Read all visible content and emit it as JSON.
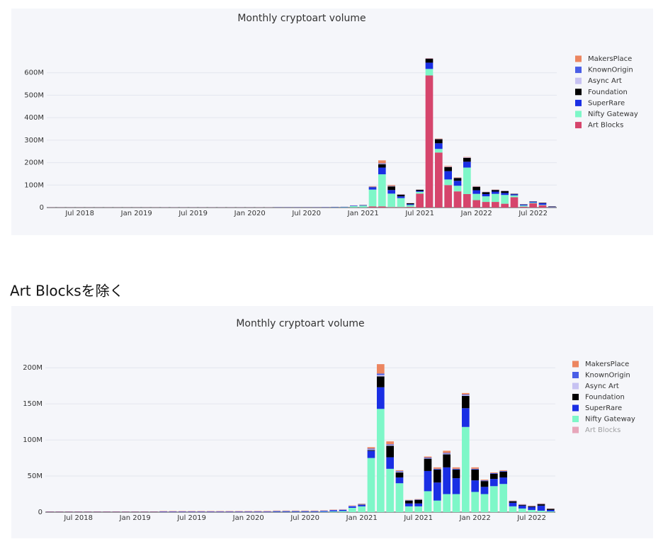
{
  "heading": "Art Blocksを除く",
  "chart_data": [
    {
      "type": "stacked_bar",
      "title": "Monthly cryptoart volume",
      "x": [
        "2018-04",
        "2018-05",
        "2018-06",
        "2018-07",
        "2018-08",
        "2018-09",
        "2018-10",
        "2018-11",
        "2018-12",
        "2019-01",
        "2019-02",
        "2019-03",
        "2019-04",
        "2019-05",
        "2019-06",
        "2019-07",
        "2019-08",
        "2019-09",
        "2019-10",
        "2019-11",
        "2019-12",
        "2020-01",
        "2020-02",
        "2020-03",
        "2020-04",
        "2020-05",
        "2020-06",
        "2020-07",
        "2020-08",
        "2020-09",
        "2020-10",
        "2020-11",
        "2020-12",
        "2021-01",
        "2021-02",
        "2021-03",
        "2021-04",
        "2021-05",
        "2021-06",
        "2021-07",
        "2021-08",
        "2021-09",
        "2021-10",
        "2021-11",
        "2021-12",
        "2022-01",
        "2022-02",
        "2022-03",
        "2022-04",
        "2022-05",
        "2022-06",
        "2022-07",
        "2022-08",
        "2022-09"
      ],
      "xlim": [
        "2018-04",
        "2022-09"
      ],
      "xticks": [
        {
          "value": "2018-07",
          "label": "Jul 2018"
        },
        {
          "value": "2019-01",
          "label": "Jan 2019"
        },
        {
          "value": "2019-07",
          "label": "Jul 2019"
        },
        {
          "value": "2020-01",
          "label": "Jan 2020"
        },
        {
          "value": "2020-07",
          "label": "Jul 2020"
        },
        {
          "value": "2021-01",
          "label": "Jan 2021"
        },
        {
          "value": "2021-07",
          "label": "Jul 2021"
        },
        {
          "value": "2022-01",
          "label": "Jan 2022"
        },
        {
          "value": "2022-07",
          "label": "Jul 2022"
        }
      ],
      "ylim": [
        0,
        700
      ],
      "yticks": [
        0,
        {
          "value": 100,
          "label": "100M"
        },
        {
          "value": 200,
          "label": "200M"
        },
        {
          "value": 300,
          "label": "300M"
        },
        {
          "value": 400,
          "label": "400M"
        },
        {
          "value": 500,
          "label": "500M"
        },
        {
          "value": 600,
          "label": "600M"
        }
      ],
      "grid": true,
      "legend": "right",
      "series": [
        {
          "name": "Art Blocks",
          "color": "#d6456c",
          "values": [
            0,
            0,
            0,
            0,
            0,
            0,
            0,
            0,
            0,
            0,
            0,
            0,
            0,
            0,
            0,
            0,
            0,
            0,
            0,
            0,
            0,
            0,
            0,
            0,
            0,
            0,
            0,
            0,
            0,
            0,
            0,
            0,
            0.5,
            0.5,
            5,
            5,
            2,
            2,
            3,
            62,
            588,
            245,
            100,
            72,
            60,
            33,
            25,
            25,
            17,
            46,
            4,
            19,
            10,
            1
          ]
        },
        {
          "name": "Nifty Gateway",
          "color": "#7ef7c8",
          "values": [
            0,
            0,
            0,
            0,
            0,
            0,
            0,
            0,
            0,
            0,
            0,
            0,
            0,
            0,
            0,
            0,
            0,
            0,
            0,
            0,
            0,
            0,
            0,
            0,
            0.3,
            0.3,
            0.3,
            0.3,
            0.3,
            0.5,
            1,
            1.5,
            6,
            8,
            75,
            143,
            60,
            40,
            8,
            8,
            29,
            16,
            25,
            25,
            118,
            28,
            25,
            36,
            39,
            8,
            5,
            3,
            2,
            1
          ]
        },
        {
          "name": "SuperRare",
          "color": "#1a2fe4",
          "values": [
            0.3,
            0.3,
            0.3,
            0.3,
            0.3,
            0.3,
            0.3,
            0.3,
            0.3,
            0.3,
            0.3,
            0.3,
            0.5,
            0.5,
            0.5,
            0.5,
            0.5,
            0.5,
            0.5,
            0.5,
            0.5,
            0.5,
            0.5,
            0.5,
            0.8,
            0.8,
            0.8,
            0.8,
            0.8,
            1,
            1.5,
            1.5,
            2,
            2,
            10,
            30,
            16,
            8,
            4,
            4,
            28,
            25,
            37,
            22,
            26,
            16,
            10,
            10,
            9,
            5,
            4,
            4,
            7,
            2
          ]
        },
        {
          "name": "Foundation",
          "color": "#000000",
          "values": [
            0,
            0,
            0,
            0,
            0,
            0,
            0,
            0,
            0,
            0,
            0,
            0,
            0,
            0,
            0,
            0,
            0,
            0,
            0,
            0,
            0,
            0,
            0,
            0,
            0,
            0,
            0,
            0,
            0,
            0,
            0,
            0,
            0,
            0.5,
            1,
            15,
            16,
            7,
            4,
            5,
            17,
            18,
            18,
            12,
            17,
            15,
            8,
            7,
            8,
            2,
            1,
            1,
            2,
            1.5
          ]
        },
        {
          "name": "Async Art",
          "color": "#c7c2f2",
          "values": [
            0,
            0,
            0,
            0,
            0,
            0,
            0,
            0,
            0,
            0,
            0,
            0,
            0,
            0,
            0,
            0,
            0,
            0,
            0,
            0,
            0,
            0,
            0.1,
            0.1,
            0.2,
            0.2,
            0.2,
            0.2,
            0.2,
            0.3,
            0.3,
            0.3,
            0.5,
            0.5,
            1,
            2,
            1,
            1,
            0,
            0,
            0.5,
            0,
            1,
            0,
            1,
            0,
            0,
            0,
            0,
            0,
            0,
            0,
            0,
            0
          ]
        },
        {
          "name": "KnownOrigin",
          "color": "#4a5ee6",
          "values": [
            0.2,
            0.2,
            0.2,
            0.2,
            0.2,
            0.2,
            0.2,
            0.2,
            0.2,
            0.2,
            0.2,
            0.2,
            0.3,
            0.3,
            0.3,
            0.3,
            0.3,
            0.3,
            0.3,
            0.3,
            0.3,
            0.3,
            0.3,
            0.3,
            0.4,
            0.4,
            0.4,
            0.4,
            0.4,
            0.3,
            0.3,
            0.3,
            0.3,
            0.3,
            1,
            2,
            1,
            1,
            0.5,
            0.5,
            1,
            1,
            1,
            1,
            1,
            1,
            1,
            1,
            1,
            0.5,
            0.5,
            0.5,
            0.5,
            0.2
          ]
        },
        {
          "name": "MakersPlace",
          "color": "#ec8660",
          "values": [
            0.5,
            0.5,
            0.5,
            0.5,
            0.5,
            0.5,
            0.5,
            0.5,
            0.5,
            0.5,
            0.5,
            0.5,
            0.6,
            0.6,
            0.6,
            0.6,
            0.6,
            0.6,
            0.6,
            0.6,
            0.6,
            0.6,
            0.6,
            0.6,
            0.5,
            0.5,
            0.5,
            0.5,
            0.5,
            0.4,
            0.4,
            0.4,
            0.5,
            0.5,
            2,
            13,
            4,
            1,
            0.5,
            0.5,
            1.5,
            2,
            3,
            2,
            2,
            2,
            1,
            1,
            1,
            0.5,
            0.5,
            0.5,
            0.5,
            0.3
          ]
        }
      ]
    },
    {
      "type": "stacked_bar",
      "title": "Monthly cryptoart volume",
      "x": [
        "2018-04",
        "2018-05",
        "2018-06",
        "2018-07",
        "2018-08",
        "2018-09",
        "2018-10",
        "2018-11",
        "2018-12",
        "2019-01",
        "2019-02",
        "2019-03",
        "2019-04",
        "2019-05",
        "2019-06",
        "2019-07",
        "2019-08",
        "2019-09",
        "2019-10",
        "2019-11",
        "2019-12",
        "2020-01",
        "2020-02",
        "2020-03",
        "2020-04",
        "2020-05",
        "2020-06",
        "2020-07",
        "2020-08",
        "2020-09",
        "2020-10",
        "2020-11",
        "2020-12",
        "2021-01",
        "2021-02",
        "2021-03",
        "2021-04",
        "2021-05",
        "2021-06",
        "2021-07",
        "2021-08",
        "2021-09",
        "2021-10",
        "2021-11",
        "2021-12",
        "2022-01",
        "2022-02",
        "2022-03",
        "2022-04",
        "2022-05",
        "2022-06",
        "2022-07",
        "2022-08",
        "2022-09"
      ],
      "xlim": [
        "2018-04",
        "2022-09"
      ],
      "xticks": [
        {
          "value": "2018-07",
          "label": "Jul 2018"
        },
        {
          "value": "2019-01",
          "label": "Jan 2019"
        },
        {
          "value": "2019-07",
          "label": "Jul 2019"
        },
        {
          "value": "2020-01",
          "label": "Jan 2020"
        },
        {
          "value": "2020-07",
          "label": "Jul 2020"
        },
        {
          "value": "2021-01",
          "label": "Jan 2021"
        },
        {
          "value": "2021-07",
          "label": "Jul 2021"
        },
        {
          "value": "2022-01",
          "label": "Jan 2022"
        },
        {
          "value": "2022-07",
          "label": "Jul 2022"
        }
      ],
      "ylim": [
        0,
        210
      ],
      "yticks": [
        0,
        {
          "value": 50,
          "label": "50M"
        },
        {
          "value": 100,
          "label": "100M"
        },
        {
          "value": 150,
          "label": "150M"
        },
        {
          "value": 200,
          "label": "200M"
        }
      ],
      "grid": true,
      "legend": "right",
      "series": [
        {
          "name": "Art Blocks",
          "color": "#d6456c",
          "visible": false
        },
        {
          "name": "Nifty Gateway",
          "color": "#7ef7c8",
          "values": [
            0,
            0,
            0,
            0,
            0,
            0,
            0,
            0,
            0,
            0,
            0,
            0,
            0,
            0,
            0,
            0,
            0,
            0,
            0,
            0,
            0,
            0,
            0,
            0,
            0.3,
            0.3,
            0.3,
            0.3,
            0.3,
            0.5,
            1,
            1.5,
            6,
            8,
            75,
            143,
            60,
            40,
            8,
            8,
            29,
            16,
            25,
            25,
            118,
            28,
            25,
            36,
            39,
            8,
            5,
            3,
            2,
            1
          ]
        },
        {
          "name": "SuperRare",
          "color": "#1a2fe4",
          "values": [
            0.3,
            0.3,
            0.3,
            0.3,
            0.3,
            0.3,
            0.3,
            0.3,
            0.3,
            0.3,
            0.3,
            0.3,
            0.5,
            0.5,
            0.5,
            0.5,
            0.5,
            0.5,
            0.5,
            0.5,
            0.5,
            0.5,
            0.5,
            0.5,
            0.8,
            0.8,
            0.8,
            0.8,
            0.8,
            1,
            1.5,
            1.5,
            2,
            2,
            10,
            30,
            16,
            8,
            4,
            4,
            28,
            25,
            37,
            22,
            26,
            16,
            10,
            10,
            9,
            5,
            4,
            4,
            7,
            2
          ]
        },
        {
          "name": "Foundation",
          "color": "#000000",
          "values": [
            0,
            0,
            0,
            0,
            0,
            0,
            0,
            0,
            0,
            0,
            0,
            0,
            0,
            0,
            0,
            0,
            0,
            0,
            0,
            0,
            0,
            0,
            0,
            0,
            0,
            0,
            0,
            0,
            0,
            0,
            0,
            0,
            0,
            0.5,
            1,
            15,
            16,
            7,
            4,
            5,
            17,
            18,
            18,
            12,
            17,
            15,
            8,
            7,
            8,
            2,
            1,
            1,
            2,
            1.5
          ]
        },
        {
          "name": "Async Art",
          "color": "#c7c2f2",
          "values": [
            0,
            0,
            0,
            0,
            0,
            0,
            0,
            0,
            0,
            0,
            0,
            0,
            0,
            0,
            0,
            0,
            0,
            0,
            0,
            0,
            0,
            0,
            0.1,
            0.1,
            0.2,
            0.2,
            0.2,
            0.2,
            0.2,
            0.3,
            0.3,
            0.3,
            0.5,
            0.5,
            1,
            2,
            1,
            1,
            0,
            0,
            0.5,
            0,
            1,
            0,
            1,
            0,
            0,
            0,
            0,
            0,
            0,
            0,
            0,
            0
          ]
        },
        {
          "name": "KnownOrigin",
          "color": "#4a5ee6",
          "values": [
            0.2,
            0.2,
            0.2,
            0.2,
            0.2,
            0.2,
            0.2,
            0.2,
            0.2,
            0.2,
            0.2,
            0.2,
            0.3,
            0.3,
            0.3,
            0.3,
            0.3,
            0.3,
            0.3,
            0.3,
            0.3,
            0.3,
            0.3,
            0.3,
            0.4,
            0.4,
            0.4,
            0.4,
            0.4,
            0.3,
            0.3,
            0.3,
            0.3,
            0.3,
            1,
            2,
            1,
            1,
            0.5,
            0.5,
            1,
            1,
            1,
            1,
            1,
            1,
            1,
            1,
            1,
            0.5,
            0.5,
            0.5,
            0.5,
            0.2
          ]
        },
        {
          "name": "MakersPlace",
          "color": "#ec8660",
          "values": [
            0.5,
            0.5,
            0.5,
            0.5,
            0.5,
            0.5,
            0.5,
            0.5,
            0.5,
            0.5,
            0.5,
            0.5,
            0.6,
            0.6,
            0.6,
            0.6,
            0.6,
            0.6,
            0.6,
            0.6,
            0.6,
            0.6,
            0.6,
            0.6,
            0.5,
            0.5,
            0.5,
            0.5,
            0.5,
            0.4,
            0.4,
            0.4,
            0.5,
            0.5,
            2,
            13,
            4,
            1,
            0.5,
            0.5,
            1.5,
            2,
            3,
            2,
            2,
            2,
            1,
            1,
            1,
            0.5,
            0.5,
            0.5,
            0.5,
            0.3
          ]
        }
      ]
    }
  ]
}
